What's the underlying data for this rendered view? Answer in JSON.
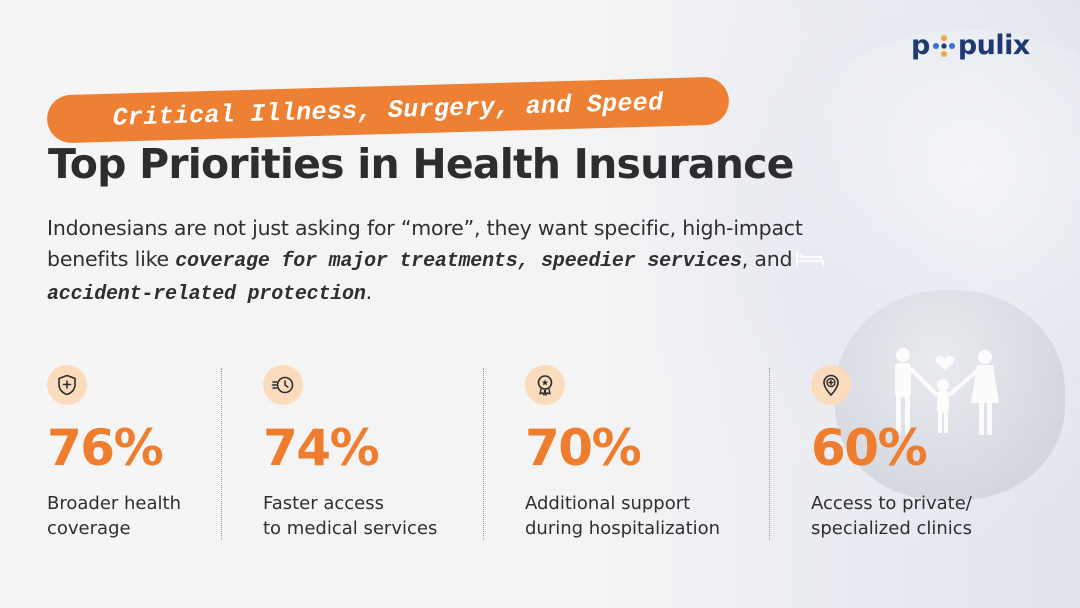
{
  "brand": {
    "logo_prefix": "p",
    "logo_suffix": "pulix",
    "color": "#1f3a70"
  },
  "tag": {
    "text": "Critical Illness, Surgery, and Speed",
    "color": "#ee8033"
  },
  "title": "Top Priorities in Health Insurance",
  "description": {
    "part1": "Indonesians are not just asking for “more”, they want specific, high-impact benefits like ",
    "em1": "coverage for major treatments, speedier services",
    "part2": ", and ",
    "em2": "accident-related protection",
    "part3": "."
  },
  "accent_color": "#ee7d2e",
  "stats": [
    {
      "icon": "shield-plus-icon",
      "value": "76%",
      "label_line1": "Broader health",
      "label_line2": "coverage"
    },
    {
      "icon": "fast-clock-icon",
      "value": "74%",
      "label_line1": "Faster access",
      "label_line2": "to medical services"
    },
    {
      "icon": "award-badge-icon",
      "value": "70%",
      "label_line1": "Additional support",
      "label_line2": "during hospitalization"
    },
    {
      "icon": "clinic-location-icon",
      "value": "60%",
      "label_line1": "Access to private/",
      "label_line2": "specialized clinics"
    }
  ]
}
